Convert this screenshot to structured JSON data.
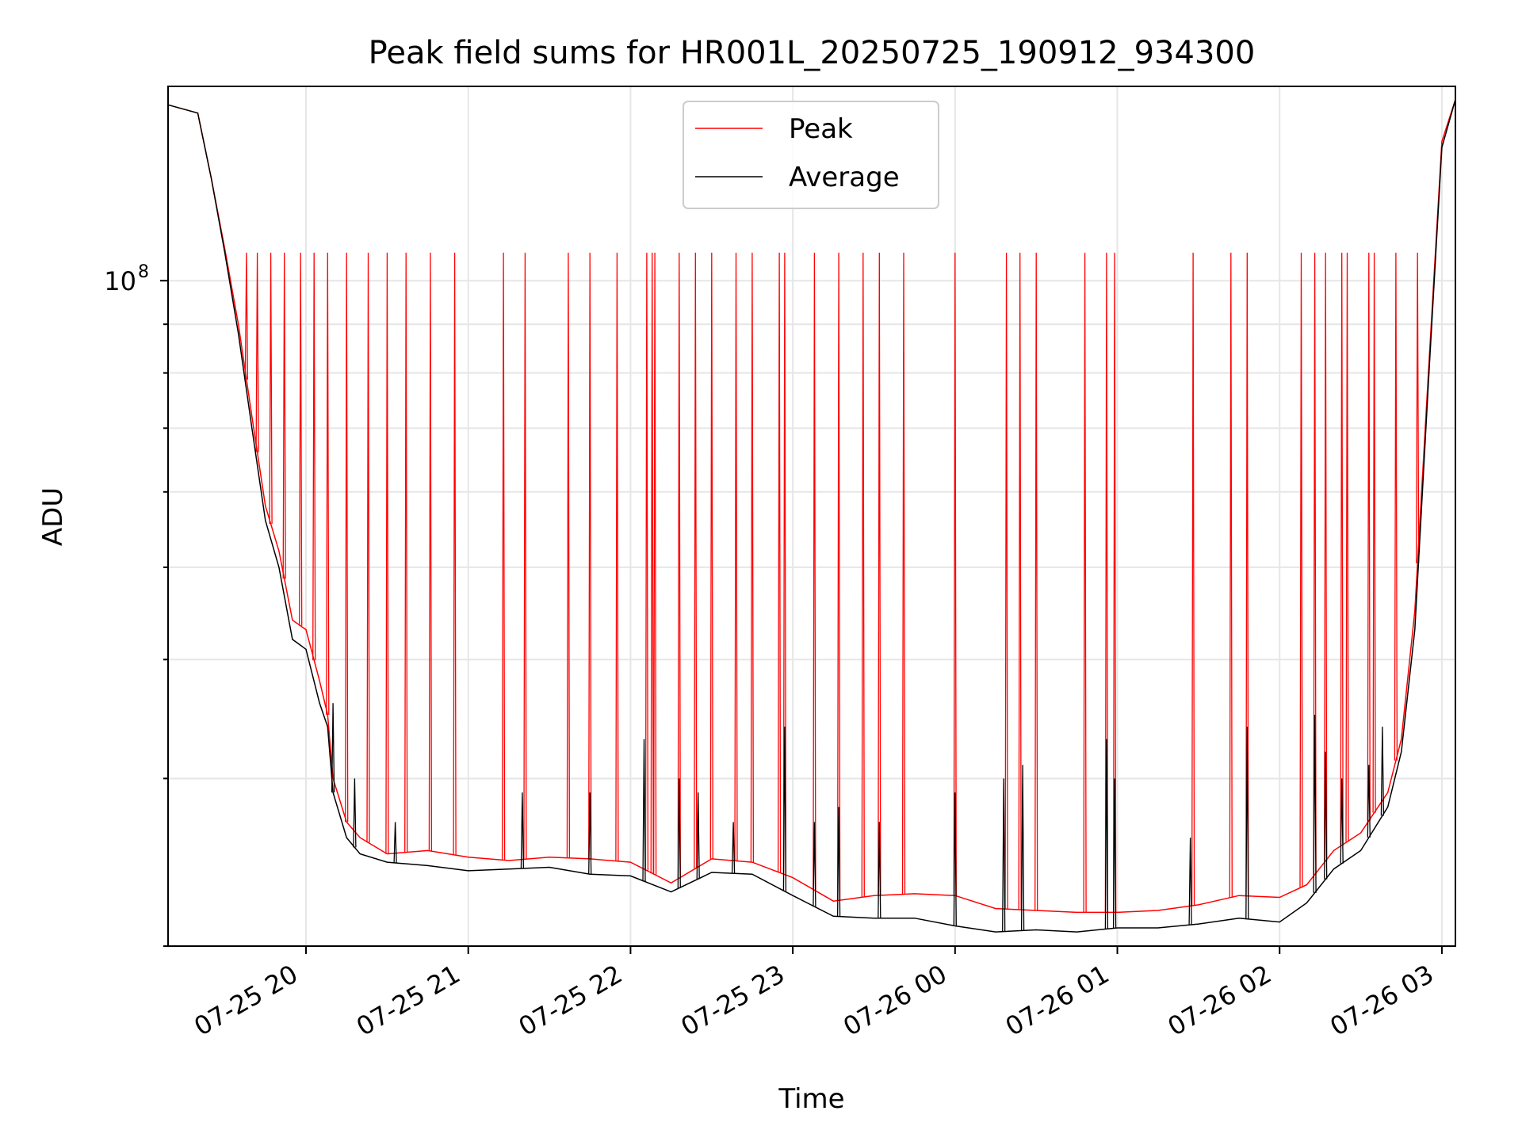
{
  "chart_data": {
    "type": "line",
    "title": "Peak field sums for HR001L_20250725_190912_934300",
    "xlabel": "Time",
    "ylabel": "ADU",
    "yscale": "log",
    "grid": true,
    "legend_position": "top-center",
    "x_ticks": [
      "07-25 20",
      "07-25 21",
      "07-25 22",
      "07-25 23",
      "07-26 00",
      "07-26 01",
      "07-26 02",
      "07-26 03"
    ],
    "y_ticks": [
      {
        "label": "10",
        "exponent": "8",
        "value": 100000000
      }
    ],
    "xlim": [
      "2025-07-25 19:09",
      "2025-07-26 03:05"
    ],
    "ylim": [
      20000000,
      160000000
    ],
    "series": [
      {
        "name": "Peak",
        "color": "#ff0000",
        "x": [
          "2025-07-25 19:09",
          "2025-07-25 19:20",
          "2025-07-25 19:25",
          "2025-07-25 19:30",
          "2025-07-25 19:35",
          "2025-07-25 19:40",
          "2025-07-25 19:45",
          "2025-07-25 19:50",
          "2025-07-25 19:55",
          "2025-07-25 20:00",
          "2025-07-25 20:05",
          "2025-07-25 20:08",
          "2025-07-25 20:10",
          "2025-07-25 20:15",
          "2025-07-25 20:20",
          "2025-07-25 20:30",
          "2025-07-25 20:45",
          "2025-07-25 21:00",
          "2025-07-25 21:15",
          "2025-07-25 21:30",
          "2025-07-25 21:45",
          "2025-07-25 22:00",
          "2025-07-25 22:15",
          "2025-07-25 22:30",
          "2025-07-25 22:45",
          "2025-07-25 23:00",
          "2025-07-25 23:15",
          "2025-07-25 23:30",
          "2025-07-25 23:45",
          "2025-07-26 00:00",
          "2025-07-26 00:15",
          "2025-07-26 00:30",
          "2025-07-26 00:45",
          "2025-07-26 01:00",
          "2025-07-26 01:15",
          "2025-07-26 01:30",
          "2025-07-26 01:45",
          "2025-07-26 02:00",
          "2025-07-26 02:10",
          "2025-07-26 02:20",
          "2025-07-26 02:30",
          "2025-07-26 02:40",
          "2025-07-26 02:45",
          "2025-07-26 02:50",
          "2025-07-26 02:55",
          "2025-07-26 03:00",
          "2025-07-26 03:05"
        ],
        "values": [
          153000000,
          150000000,
          128000000,
          108000000,
          90000000,
          72000000,
          58000000,
          52000000,
          44000000,
          43000000,
          38000000,
          35000000,
          30000000,
          27000000,
          26000000,
          25000000,
          25200000,
          24800000,
          24600000,
          24800000,
          24700000,
          24500000,
          23300000,
          24700000,
          24500000,
          23600000,
          22300000,
          22600000,
          22700000,
          22600000,
          21900000,
          21800000,
          21700000,
          21700000,
          21800000,
          22100000,
          22600000,
          22500000,
          23200000,
          25200000,
          26300000,
          29000000,
          33000000,
          45000000,
          80000000,
          140000000,
          155000000
        ],
        "spike_times": [
          "2025-07-25 19:38",
          "2025-07-25 19:42",
          "2025-07-25 19:47",
          "2025-07-25 19:52",
          "2025-07-25 19:58",
          "2025-07-25 20:03",
          "2025-07-25 20:08",
          "2025-07-25 20:15",
          "2025-07-25 20:23",
          "2025-07-25 20:30",
          "2025-07-25 20:37",
          "2025-07-25 20:46",
          "2025-07-25 20:55",
          "2025-07-25 21:13",
          "2025-07-25 21:21",
          "2025-07-25 21:37",
          "2025-07-25 21:45",
          "2025-07-25 21:55",
          "2025-07-25 22:06",
          "2025-07-25 22:08",
          "2025-07-25 22:09",
          "2025-07-25 22:18",
          "2025-07-25 22:24",
          "2025-07-25 22:30",
          "2025-07-25 22:39",
          "2025-07-25 22:45",
          "2025-07-25 22:55",
          "2025-07-25 22:57",
          "2025-07-25 23:08",
          "2025-07-25 23:17",
          "2025-07-25 23:26",
          "2025-07-25 23:32",
          "2025-07-25 23:41",
          "2025-07-26 00:00",
          "2025-07-26 00:19",
          "2025-07-26 00:24",
          "2025-07-26 00:30",
          "2025-07-26 00:48",
          "2025-07-26 00:56",
          "2025-07-26 00:59",
          "2025-07-26 01:28",
          "2025-07-26 01:42",
          "2025-07-26 01:48",
          "2025-07-26 02:08",
          "2025-07-26 02:13",
          "2025-07-26 02:17",
          "2025-07-26 02:23",
          "2025-07-26 02:25",
          "2025-07-26 02:33",
          "2025-07-26 02:35",
          "2025-07-26 02:43",
          "2025-07-26 02:51"
        ],
        "spike_value": 107000000
      },
      {
        "name": "Average",
        "color": "#000000",
        "x": [
          "2025-07-25 19:09",
          "2025-07-25 19:20",
          "2025-07-25 19:25",
          "2025-07-25 19:30",
          "2025-07-25 19:35",
          "2025-07-25 19:40",
          "2025-07-25 19:45",
          "2025-07-25 19:50",
          "2025-07-25 19:55",
          "2025-07-25 20:00",
          "2025-07-25 20:05",
          "2025-07-25 20:08",
          "2025-07-25 20:10",
          "2025-07-25 20:15",
          "2025-07-25 20:20",
          "2025-07-25 20:30",
          "2025-07-25 20:45",
          "2025-07-25 21:00",
          "2025-07-25 21:15",
          "2025-07-25 21:30",
          "2025-07-25 21:45",
          "2025-07-25 22:00",
          "2025-07-25 22:15",
          "2025-07-25 22:30",
          "2025-07-25 22:45",
          "2025-07-25 23:00",
          "2025-07-25 23:15",
          "2025-07-25 23:30",
          "2025-07-25 23:45",
          "2025-07-26 00:00",
          "2025-07-26 00:15",
          "2025-07-26 00:30",
          "2025-07-26 00:45",
          "2025-07-26 01:00",
          "2025-07-26 01:15",
          "2025-07-26 01:30",
          "2025-07-26 01:45",
          "2025-07-26 02:00",
          "2025-07-26 02:10",
          "2025-07-26 02:20",
          "2025-07-26 02:30",
          "2025-07-26 02:40",
          "2025-07-26 02:45",
          "2025-07-26 02:50",
          "2025-07-26 02:55",
          "2025-07-26 03:00",
          "2025-07-26 03:05"
        ],
        "values": [
          153000000,
          150000000,
          128000000,
          107000000,
          88000000,
          70000000,
          56000000,
          50000000,
          42000000,
          41000000,
          36000000,
          34000000,
          29000000,
          26000000,
          25000000,
          24500000,
          24300000,
          24000000,
          24100000,
          24200000,
          23800000,
          23700000,
          22800000,
          23900000,
          23800000,
          22600000,
          21500000,
          21400000,
          21400000,
          21000000,
          20700000,
          20800000,
          20700000,
          20900000,
          20900000,
          21100000,
          21400000,
          21200000,
          22200000,
          24100000,
          25200000,
          28000000,
          32000000,
          43000000,
          78000000,
          138000000,
          155000000
        ],
        "spike_times": [
          "2025-07-25 20:10",
          "2025-07-25 20:18",
          "2025-07-25 20:33",
          "2025-07-25 21:20",
          "2025-07-25 21:45",
          "2025-07-25 22:05",
          "2025-07-25 22:18",
          "2025-07-25 22:25",
          "2025-07-25 22:38",
          "2025-07-25 22:57",
          "2025-07-25 23:08",
          "2025-07-25 23:17",
          "2025-07-25 23:32",
          "2025-07-26 00:00",
          "2025-07-26 00:18",
          "2025-07-26 00:25",
          "2025-07-26 00:56",
          "2025-07-26 00:59",
          "2025-07-26 01:27",
          "2025-07-26 01:48",
          "2025-07-26 02:13",
          "2025-07-26 02:17",
          "2025-07-26 02:23",
          "2025-07-26 02:33",
          "2025-07-26 02:38"
        ],
        "spike_values": [
          36000000,
          30000000,
          27000000,
          29000000,
          29000000,
          33000000,
          30000000,
          29000000,
          27000000,
          34000000,
          27000000,
          28000000,
          27000000,
          29000000,
          30000000,
          31000000,
          33000000,
          30000000,
          26000000,
          34000000,
          35000000,
          32000000,
          30000000,
          31000000,
          34000000
        ]
      }
    ]
  }
}
